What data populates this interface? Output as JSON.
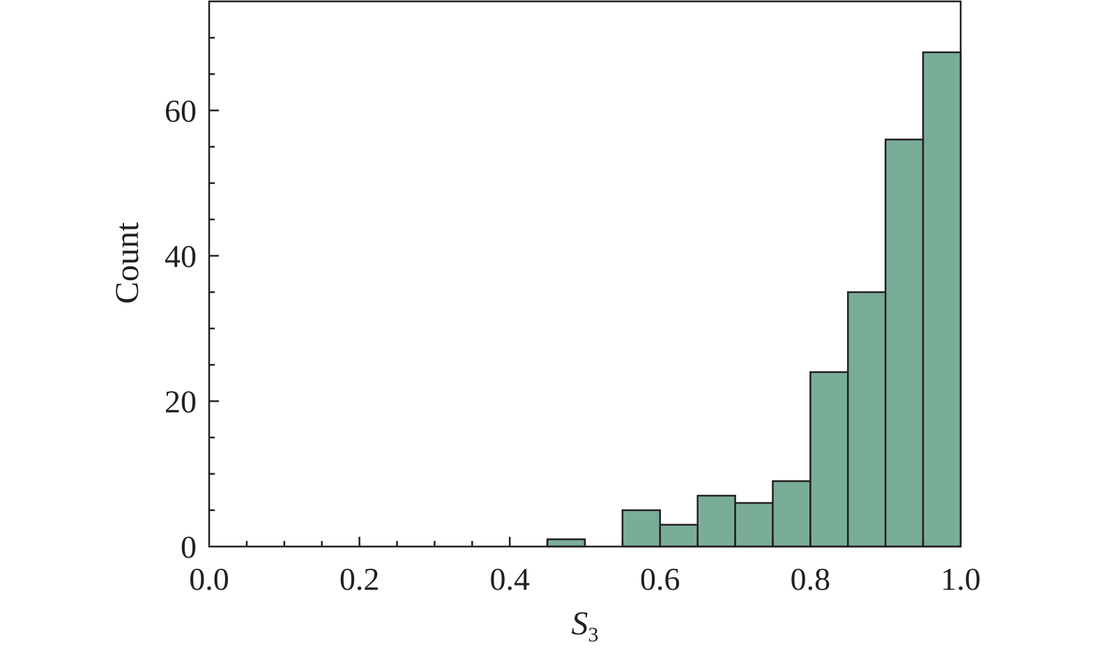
{
  "chart_data": {
    "type": "bar",
    "title": "",
    "xlabel": {
      "main": "S",
      "sub": "3"
    },
    "ylabel": "Count",
    "xlim": [
      0.0,
      1.0
    ],
    "ylim": [
      0,
      75
    ],
    "x_ticks": [
      "0.0",
      "0.2",
      "0.4",
      "0.6",
      "0.8",
      "1.0"
    ],
    "y_ticks": [
      "0",
      "20",
      "40",
      "60"
    ],
    "bin_width": 0.05,
    "bins": [
      {
        "x0": 0.45,
        "x1": 0.5,
        "count": 1
      },
      {
        "x0": 0.55,
        "x1": 0.6,
        "count": 5
      },
      {
        "x0": 0.6,
        "x1": 0.65,
        "count": 3
      },
      {
        "x0": 0.65,
        "x1": 0.7,
        "count": 7
      },
      {
        "x0": 0.7,
        "x1": 0.75,
        "count": 6
      },
      {
        "x0": 0.75,
        "x1": 0.8,
        "count": 9
      },
      {
        "x0": 0.8,
        "x1": 0.85,
        "count": 24
      },
      {
        "x0": 0.85,
        "x1": 0.9,
        "count": 35
      },
      {
        "x0": 0.9,
        "x1": 0.95,
        "count": 56
      },
      {
        "x0": 0.95,
        "x1": 1.0,
        "count": 68
      }
    ],
    "bar_color": "#7aad97",
    "edge_color": "#231f20",
    "grid": false,
    "legend": "none"
  }
}
